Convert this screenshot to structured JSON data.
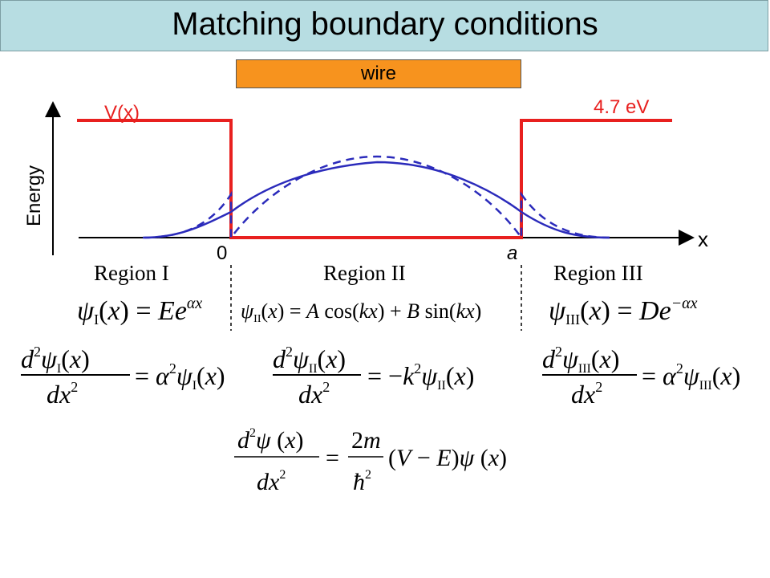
{
  "title": "Matching boundary conditions",
  "wire_label": "wire",
  "axes": {
    "energy_label": "Energy",
    "x_label": "x",
    "zero_label": "0",
    "a_label": "a"
  },
  "potential": {
    "label": "V(x)",
    "barrier_label": "4.7 eV"
  },
  "regions": [
    "Region I",
    "Region II",
    "Region III"
  ],
  "colors": {
    "potential": "#e8201f",
    "wavefunction": "#2b2bbb",
    "title_bg": "#b7dde2",
    "wire_bg": "#f7931e"
  },
  "equations": {
    "psi_I": "ψ_I(x) = E e^{αx}",
    "psi_II": "ψ_II(x) = A cos(kx) + B sin(kx)",
    "psi_III": "ψ_III(x) = D e^{−αx}",
    "de_I": "d²ψ_I(x)/dx² = α²ψ_I(x)",
    "de_II": "d²ψ_II(x)/dx² = −k²ψ_II(x)",
    "de_III": "d²ψ_III(x)/dx² = α²ψ_III(x)",
    "schrodinger": "d²ψ(x)/dx² = (2m/ħ²)(V − E)ψ(x)"
  }
}
